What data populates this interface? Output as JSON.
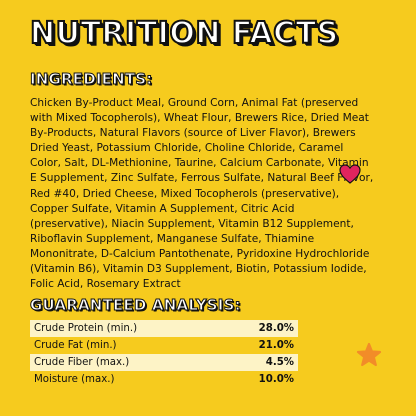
{
  "title": "NUTRITION FACTS",
  "ingredients": {
    "heading": "INGREDIENTS:",
    "text": "Chicken By-Product Meal, Ground Corn, Animal Fat (preserved with Mixed Tocopherols), Wheat Flour, Brewers Rice, Dried Meat By-Products, Natural Flavors (source of Liver Flavor), Brewers Dried Yeast, Potassium Chloride, Choline Chloride, Caramel Color, Salt, DL-Methionine, Taurine, Calcium Carbonate, Vitamin E Supplement, Zinc Sulfate, Ferrous Sulfate, Natural Beef Flavor, Red #40, Dried Cheese, Mixed Tocopherols (preservative), Copper Sulfate, Vitamin A Supplement, Citric Acid (preservative), Niacin Supplement, Vitamin B12 Supplement, Riboflavin Supplement, Manganese Sulfate, Thiamine Mononitrate, D-Calcium Pantothenate, Pyridoxine Hydrochloride (Vitamin B6), Vitamin D3 Supplement, Biotin, Potassium Iodide, Folic Acid, Rosemary Extract"
  },
  "analysis": {
    "heading": "GUARANTEED ANALYSIS:",
    "rows": [
      {
        "label": "Crude Protein (min.)",
        "value": "28.0%"
      },
      {
        "label": "Crude Fat (min.)",
        "value": "21.0%"
      },
      {
        "label": "Crude Fiber (max.)",
        "value": "4.5%"
      },
      {
        "label": "Moisture (max.)",
        "value": "10.0%"
      }
    ]
  },
  "decor": {
    "heart_icon_color": "#E0245E",
    "star_icon_color": "#F28C28",
    "background_color": "#F6CB1E"
  }
}
